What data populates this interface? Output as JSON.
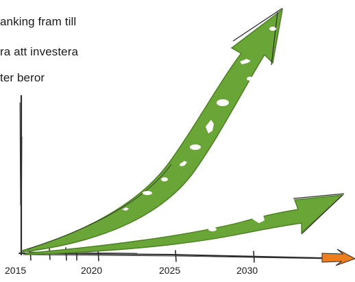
{
  "text": {
    "lines": [
      "anking fram till",
      "ra att investera",
      "ter beror"
    ]
  },
  "axis": {
    "years": [
      "2015",
      "2020",
      "2025",
      "2030"
    ]
  },
  "colors": {
    "arrow_green": "#6aa537",
    "axis_arrow_orange": "#ee7d1e",
    "ink": "#2b2b2b",
    "silhouette": "#ffffff"
  },
  "icons": [
    "bird-silhouette",
    "deer-silhouette",
    "hedgehog-silhouette",
    "fish-silhouette",
    "moose-silhouette",
    "bat-silhouette"
  ]
}
